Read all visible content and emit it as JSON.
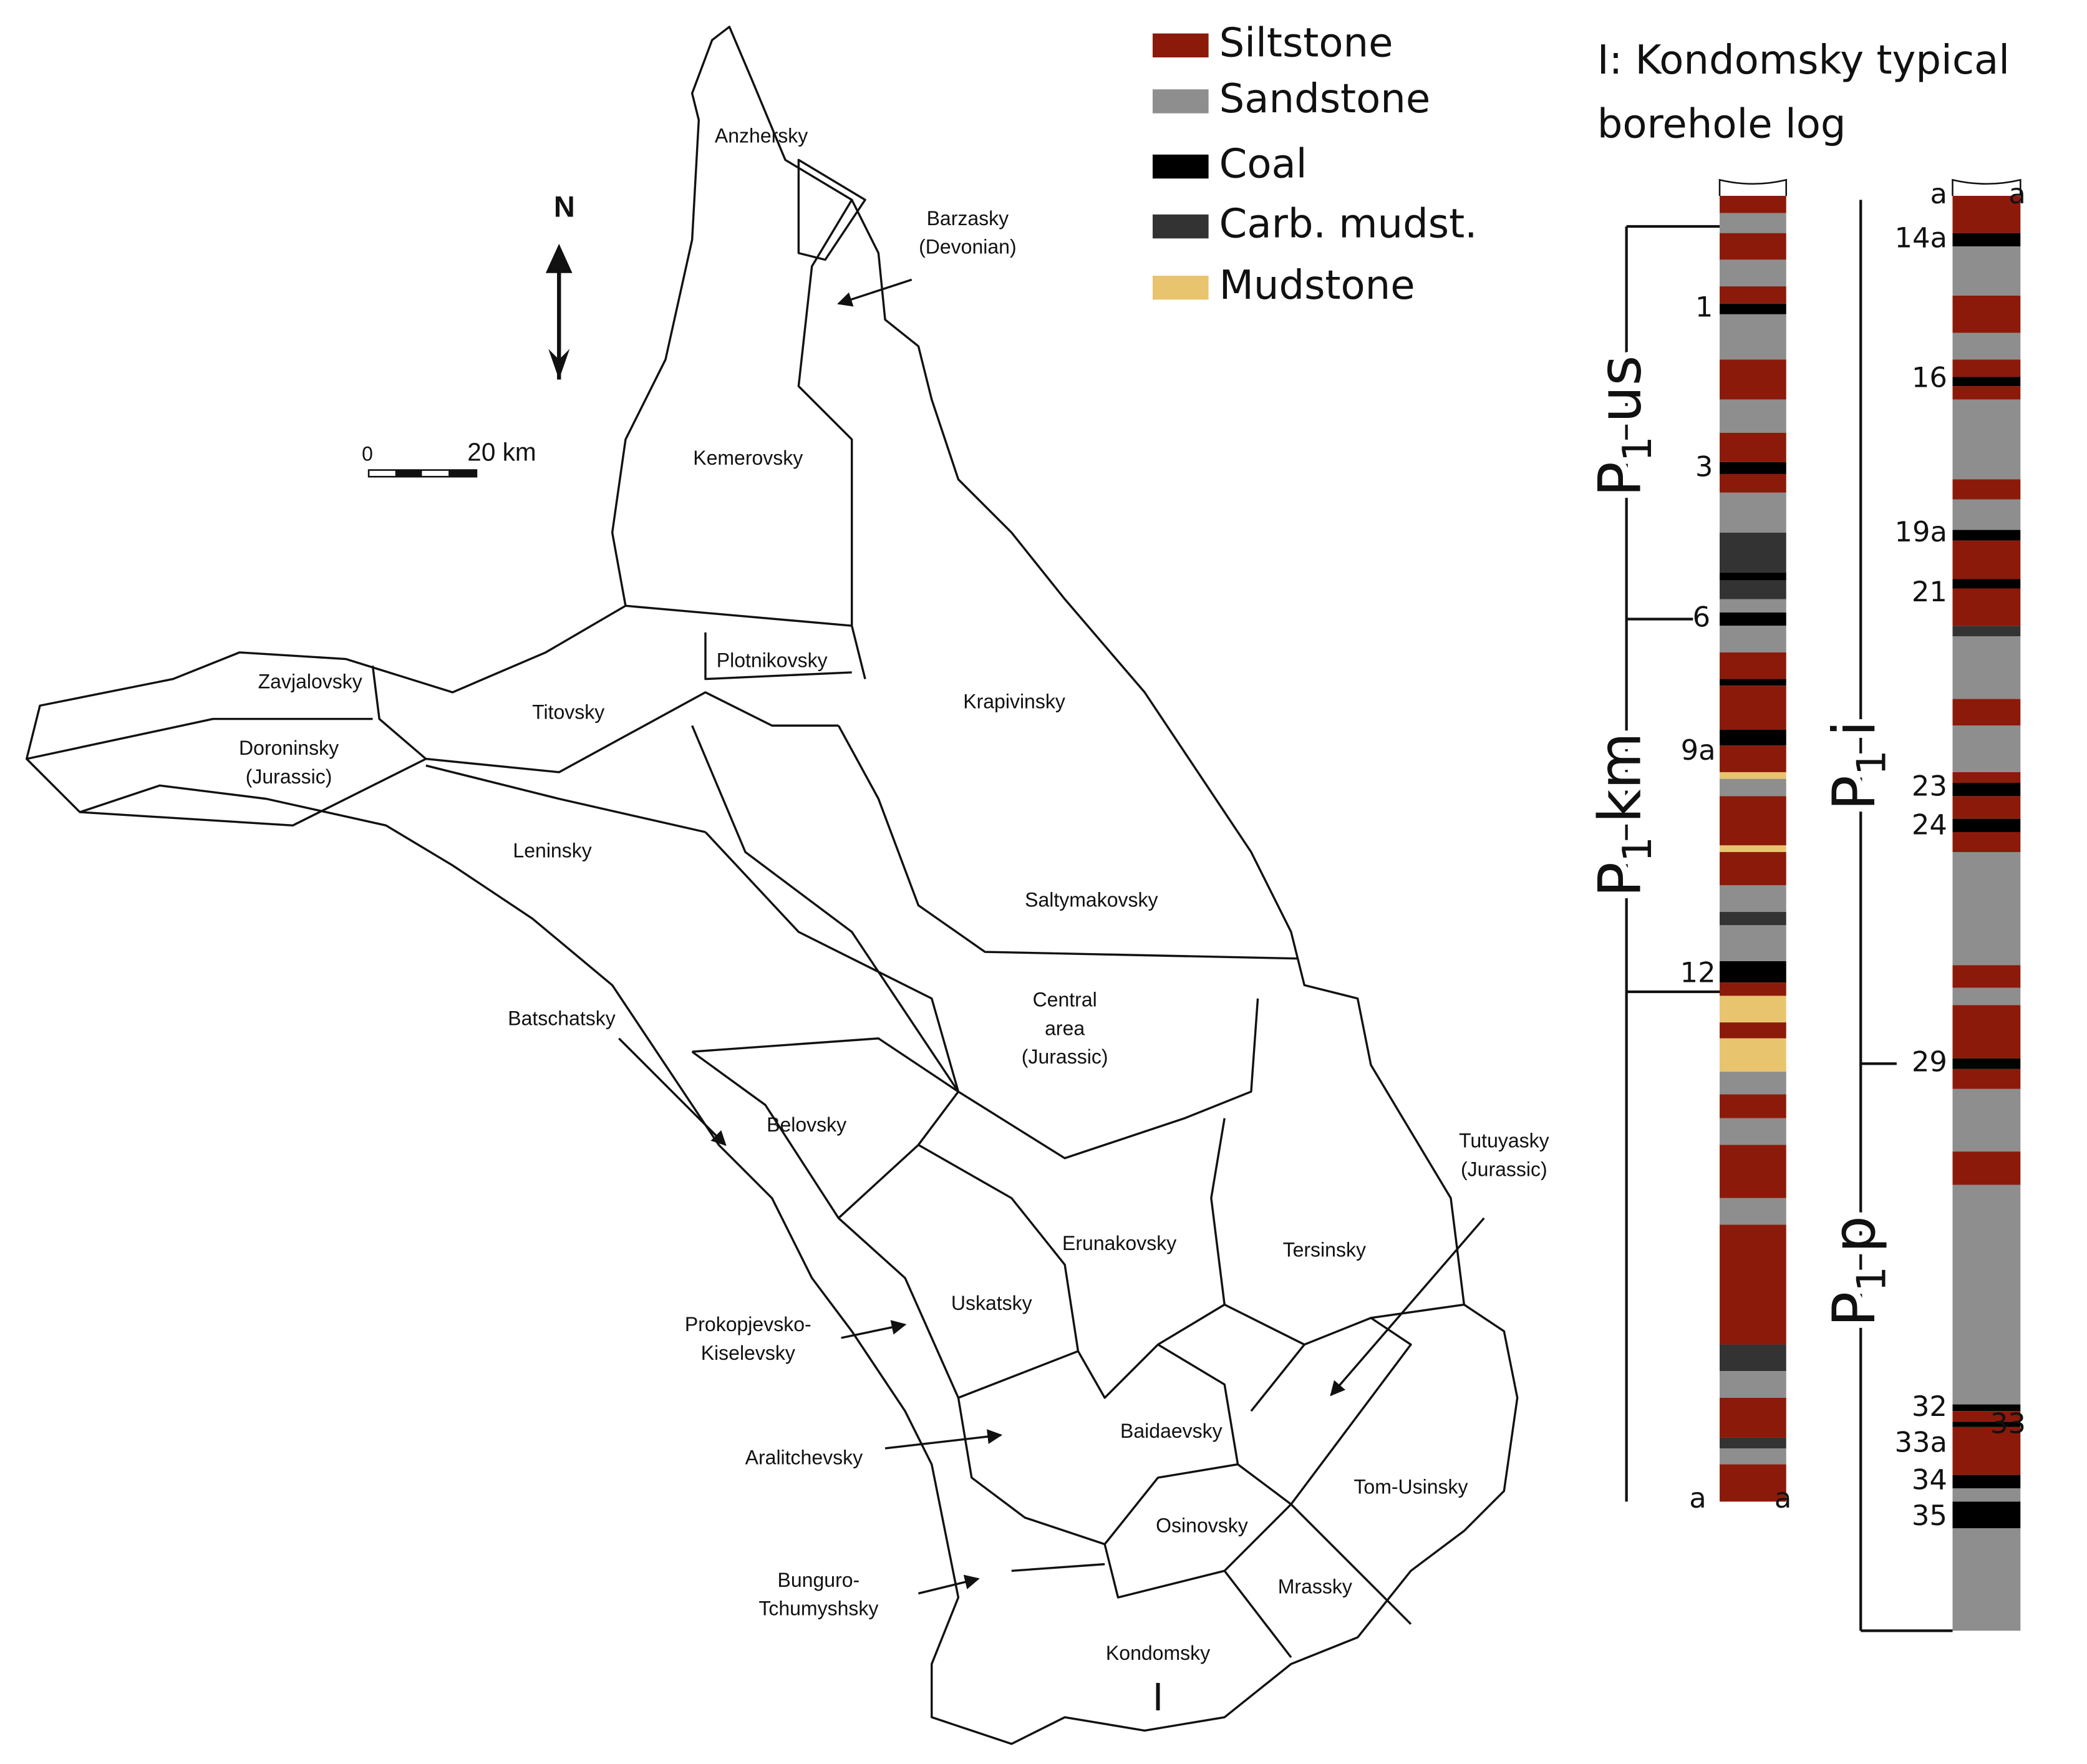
{
  "map": {
    "north": "N",
    "scale": {
      "start": "0",
      "end": "20 km"
    },
    "regions": [
      {
        "lines": [
          "Anzhersky"
        ]
      },
      {
        "lines": [
          "Barzasky",
          "(Devonian)"
        ]
      },
      {
        "lines": [
          "Kemerovsky"
        ]
      },
      {
        "lines": [
          "Plotnikovsky"
        ]
      },
      {
        "lines": [
          "Zavjalovsky"
        ]
      },
      {
        "lines": [
          "Titovsky"
        ]
      },
      {
        "lines": [
          "Krapivinsky"
        ]
      },
      {
        "lines": [
          "Doroninsky",
          "(Jurassic)"
        ]
      },
      {
        "lines": [
          "Leninsky"
        ]
      },
      {
        "lines": [
          "Saltymakovsky"
        ]
      },
      {
        "lines": [
          "Central",
          "area",
          "(Jurassic)"
        ]
      },
      {
        "lines": [
          "Batschatsky"
        ]
      },
      {
        "lines": [
          "Belovsky"
        ]
      },
      {
        "lines": [
          "Tutuyasky",
          "(Jurassic)"
        ]
      },
      {
        "lines": [
          "Erunakovsky"
        ]
      },
      {
        "lines": [
          "Tersinsky"
        ]
      },
      {
        "lines": [
          "Uskatsky"
        ]
      },
      {
        "lines": [
          "Prokopjevsko-",
          "Kiselevsky"
        ]
      },
      {
        "lines": [
          "Baidaevsky"
        ]
      },
      {
        "lines": [
          "Aralitchevsky"
        ]
      },
      {
        "lines": [
          "Tom-Usinsky"
        ]
      },
      {
        "lines": [
          "Osinovsky"
        ]
      },
      {
        "lines": [
          "Mrassky"
        ]
      },
      {
        "lines": [
          "Bunguro-",
          "Tchumyshsky"
        ]
      },
      {
        "lines": [
          "Kondomsky"
        ]
      }
    ],
    "log_marker": "I"
  },
  "legend": [
    {
      "label": "Siltstone",
      "color": "#8b1a0a"
    },
    {
      "label": "Sandstone",
      "color": "#8e8e8e"
    },
    {
      "label": "Coal",
      "color": "#000000"
    },
    {
      "label": "Carb. mudst.",
      "color": "#333333"
    },
    {
      "label": "Mudstone",
      "color": "#e9c46e"
    }
  ],
  "log": {
    "title": [
      "I: Kondomsky typical",
      "borehole log"
    ],
    "columns": [
      {
        "ends": [
          "a",
          "a"
        ],
        "seams": [
          "1",
          "3",
          "6",
          "9a",
          "12"
        ],
        "formations": [
          {
            "symbol": "P",
            "sub": "1",
            "suffix": "us"
          },
          {
            "symbol": "P",
            "sub": "1",
            "suffix": "km"
          }
        ]
      },
      {
        "ends": [
          "a",
          "a"
        ],
        "seams": [
          "14a",
          "16",
          "19a",
          "21",
          "23",
          "24",
          "29",
          "32",
          "33",
          "33a",
          "34",
          "35"
        ],
        "formations": [
          {
            "symbol": "P",
            "sub": "1",
            "suffix": "i"
          },
          {
            "symbol": "P",
            "sub": "1",
            "suffix": "p"
          }
        ]
      }
    ]
  }
}
